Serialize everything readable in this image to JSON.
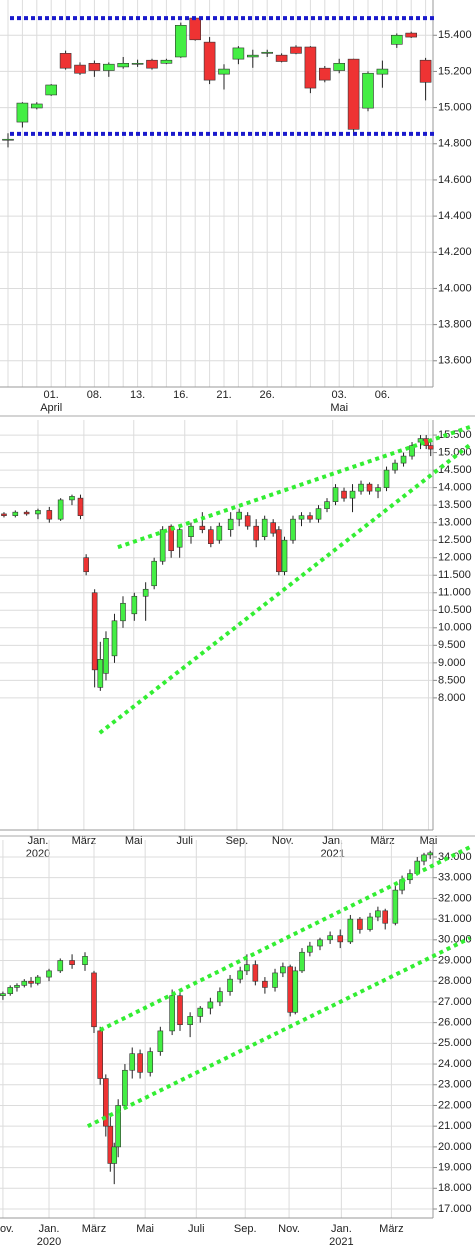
{
  "chart_data": [
    {
      "type": "candlestick",
      "up_color": "#44ee44",
      "down_color": "#ee3333",
      "grid": true,
      "categories": [
        null,
        null,
        null,
        "01.",
        null,
        null,
        "08.",
        null,
        null,
        "13.",
        null,
        null,
        "16.",
        null,
        null,
        "21.",
        null,
        null,
        "26.",
        null,
        null,
        null,
        null,
        "03.",
        null,
        null,
        "06.",
        null,
        null,
        null
      ],
      "month_labels": [
        null,
        null,
        null,
        "April",
        null,
        null,
        null,
        null,
        null,
        null,
        null,
        null,
        null,
        null,
        null,
        null,
        null,
        null,
        null,
        null,
        null,
        null,
        null,
        "Mai",
        null,
        null,
        null,
        null,
        null,
        null
      ],
      "open": [
        14820,
        14920,
        14998,
        15070,
        15300,
        15235,
        15245,
        15205,
        15225,
        15240,
        15262,
        15245,
        15280,
        15495,
        15362,
        15185,
        15268,
        15280,
        15300,
        15290,
        15335,
        15335,
        15218,
        15205,
        15268,
        14997,
        15185,
        15350,
        15412,
        15262
      ],
      "high": [
        14858,
        15030,
        15030,
        15130,
        15315,
        15250,
        15260,
        15250,
        15280,
        15265,
        15270,
        15270,
        15470,
        15500,
        15390,
        15240,
        15340,
        15320,
        15320,
        15300,
        15345,
        15340,
        15230,
        15270,
        15270,
        15200,
        15260,
        15410,
        15420,
        15275
      ],
      "low": [
        14780,
        14890,
        14990,
        15065,
        15210,
        15180,
        15170,
        15170,
        15215,
        15225,
        15210,
        15240,
        15275,
        15370,
        15130,
        15100,
        15240,
        15220,
        15280,
        15250,
        15295,
        15080,
        15140,
        15190,
        14850,
        14980,
        15110,
        15330,
        15385,
        15040
      ],
      "close": [
        14825,
        15025,
        15020,
        15125,
        15218,
        15190,
        15205,
        15240,
        15245,
        15245,
        15218,
        15262,
        15455,
        15375,
        15152,
        15213,
        15330,
        15290,
        15306,
        15255,
        15300,
        15108,
        15152,
        15245,
        14880,
        15190,
        15213,
        15400,
        15390,
        15140
      ],
      "ylim": [
        13455,
        15595
      ],
      "yticks": [
        {
          "value": 15400,
          "label": "15.400"
        },
        {
          "value": 15200,
          "label": "15.200"
        },
        {
          "value": 15000,
          "label": "15.000"
        },
        {
          "value": 14800,
          "label": "14.800"
        },
        {
          "value": 14600,
          "label": "14.600"
        },
        {
          "value": 14400,
          "label": "14.400"
        },
        {
          "value": 14200,
          "label": "14.200"
        },
        {
          "value": 14000,
          "label": "14.000"
        },
        {
          "value": 13800,
          "label": "13.800"
        },
        {
          "value": 13600,
          "label": "13.600"
        }
      ],
      "hlines": [
        15495,
        14855
      ],
      "hline_color": "#1a1acc"
    },
    {
      "type": "candlestick",
      "up_color": "#44ee44",
      "down_color": "#ee3333",
      "grid": true,
      "x": [
        -6,
        -4,
        -2,
        0,
        2,
        4,
        6,
        7.5,
        8.5,
        10,
        11,
        12,
        13.5,
        15,
        17,
        19,
        20.5,
        22,
        23.5,
        25,
        27,
        29,
        30.5,
        32,
        34,
        35.5,
        37,
        38.5,
        40,
        41.5,
        42.5,
        43.5,
        45,
        46.5,
        48,
        49.5,
        51,
        52.5,
        54,
        55.5,
        57,
        58.5,
        60,
        61.5,
        63,
        64.5,
        66,
        67.5,
        68.5,
        69.3
      ],
      "open": [
        13250,
        13200,
        13300,
        13250,
        13350,
        13100,
        13650,
        13700,
        12000,
        11000,
        8300,
        8700,
        9200,
        10200,
        10400,
        10900,
        11200,
        11900,
        12900,
        12300,
        12600,
        12900,
        12800,
        12500,
        12800,
        13100,
        13200,
        12900,
        12600,
        13000,
        12800,
        11600,
        12500,
        13100,
        13200,
        13100,
        13400,
        13600,
        13900,
        13700,
        13900,
        14100,
        13900,
        14000,
        14500,
        14700,
        14900,
        15300,
        15400,
        15200
      ],
      "high": [
        13300,
        13350,
        13350,
        13400,
        13450,
        13700,
        13800,
        13800,
        12100,
        11100,
        9600,
        9900,
        10400,
        10900,
        11000,
        11300,
        12000,
        12900,
        12950,
        12900,
        13000,
        13300,
        12900,
        13000,
        13300,
        13400,
        13300,
        13100,
        13200,
        13100,
        12900,
        12600,
        13200,
        13300,
        13300,
        13500,
        13700,
        14100,
        14000,
        14100,
        14200,
        14150,
        14100,
        14600,
        14800,
        15000,
        15300,
        15500,
        15500,
        15300
      ],
      "low": [
        13150,
        13150,
        13200,
        13100,
        13000,
        13050,
        13500,
        13100,
        11500,
        8300,
        8200,
        8500,
        9000,
        10000,
        10200,
        10200,
        11100,
        11800,
        12000,
        12000,
        12400,
        12700,
        12300,
        12400,
        12600,
        12900,
        12800,
        12300,
        12500,
        12600,
        11500,
        11500,
        12400,
        12900,
        13000,
        13000,
        13300,
        13500,
        13600,
        13300,
        13800,
        13800,
        13700,
        13900,
        14400,
        14600,
        14800,
        15100,
        15100,
        14900
      ],
      "close": [
        13200,
        13300,
        13250,
        13350,
        13100,
        13650,
        13750,
        13200,
        11600,
        8800,
        9100,
        9700,
        10200,
        10700,
        10900,
        11100,
        11900,
        12800,
        12200,
        12800,
        12900,
        12800,
        12400,
        12900,
        13100,
        13300,
        12900,
        12500,
        13100,
        12700,
        11600,
        12500,
        13100,
        13200,
        13100,
        13400,
        13600,
        14000,
        13700,
        13900,
        14100,
        13900,
        14000,
        14500,
        14700,
        14900,
        15200,
        15400,
        15200,
        15100
      ],
      "xlim": [
        -6.7,
        69.7
      ],
      "xticks": [
        {
          "value": 0,
          "label": "Jan."
        },
        {
          "value": 8.1,
          "label": "März"
        },
        {
          "value": 16.9,
          "label": "Mai"
        },
        {
          "value": 25.9,
          "label": "Juli"
        },
        {
          "value": 35.1,
          "label": "Sep."
        },
        {
          "value": 43.2,
          "label": "Nov."
        },
        {
          "value": 52,
          "label": "Jan."
        },
        {
          "value": 60.8,
          "label": "März"
        },
        {
          "value": 68.9,
          "label": "Mai"
        }
      ],
      "year_labels": [
        {
          "value": 0,
          "label": "2020"
        },
        {
          "value": 52,
          "label": "2021"
        }
      ],
      "ylim": [
        4230,
        15930
      ],
      "yticks": [
        {
          "value": 15500,
          "label": "15.500"
        },
        {
          "value": 15000,
          "label": "15.000"
        },
        {
          "value": 14500,
          "label": "14.500"
        },
        {
          "value": 14000,
          "label": "14.000"
        },
        {
          "value": 13500,
          "label": "13.500"
        },
        {
          "value": 13000,
          "label": "13.000"
        },
        {
          "value": 12500,
          "label": "12.500"
        },
        {
          "value": 12000,
          "label": "12.000"
        },
        {
          "value": 11500,
          "label": "11.500"
        },
        {
          "value": 11000,
          "label": "11.000"
        },
        {
          "value": 10500,
          "label": "10.500"
        },
        {
          "value": 10000,
          "label": "10.000"
        },
        {
          "value": 9500,
          "label": "9.500"
        },
        {
          "value": 9000,
          "label": "9.000"
        },
        {
          "value": 8500,
          "label": "8.500"
        },
        {
          "value": 8000,
          "label": "8.000"
        }
      ],
      "trendlines": [
        {
          "x": [
            14.1,
            76.2
          ],
          "y": [
            12300,
            15730
          ]
        },
        {
          "x": [
            10.9,
            76.2
          ],
          "y": [
            7000,
            15220
          ]
        }
      ],
      "trendline_color": "#33ee33"
    },
    {
      "type": "candlestick",
      "up_color": "#44ee44",
      "down_color": "#ee3333",
      "grid": true,
      "x": [
        -8.2,
        -6.9,
        -5.7,
        -4.4,
        -3.2,
        -2,
        0,
        2,
        4.1,
        6.4,
        8,
        9.1,
        10.1,
        10.9,
        11.6,
        12.3,
        13.5,
        14.8,
        16.2,
        18,
        19.8,
        21.9,
        23.3,
        25.1,
        26.9,
        28.7,
        30.4,
        32.2,
        34,
        35.2,
        36.7,
        38.4,
        40.2,
        41.6,
        42.9,
        43.8,
        45,
        46.4,
        48.2,
        50,
        51.8,
        53.6,
        55.3,
        57.1,
        58.5,
        59.8,
        61.6,
        62.8,
        64.2,
        65.5,
        66.7,
        67.8
      ],
      "open": [
        27300,
        27400,
        27700,
        27800,
        28000,
        27900,
        28200,
        28500,
        29000,
        28800,
        28400,
        25600,
        23300,
        21000,
        19200,
        20000,
        22000,
        23700,
        24500,
        23600,
        24600,
        25600,
        27300,
        25900,
        26300,
        26700,
        27000,
        27500,
        28100,
        28500,
        28800,
        28000,
        27700,
        28400,
        28700,
        26500,
        28500,
        29400,
        29700,
        30000,
        30200,
        29900,
        31000,
        30500,
        31100,
        31400,
        30800,
        32400,
        32900,
        33200,
        33800,
        34100
      ],
      "high": [
        27500,
        27800,
        27900,
        28100,
        28200,
        28300,
        28600,
        29100,
        29300,
        29400,
        28500,
        25800,
        23500,
        21500,
        20200,
        22300,
        24000,
        24800,
        24700,
        24800,
        25800,
        27600,
        27500,
        26500,
        26800,
        27200,
        27700,
        28300,
        28700,
        29300,
        29000,
        28200,
        28600,
        28900,
        28800,
        28700,
        29600,
        29900,
        30100,
        30400,
        30500,
        31200,
        31100,
        31300,
        31600,
        31500,
        32600,
        33100,
        33400,
        34000,
        34200,
        34300
      ],
      "low": [
        27100,
        27300,
        27500,
        27700,
        27700,
        27800,
        28000,
        28400,
        28600,
        28500,
        25500,
        23000,
        20500,
        18800,
        18200,
        19500,
        21800,
        23300,
        23300,
        23400,
        24400,
        25400,
        25600,
        25300,
        26000,
        26400,
        26800,
        27300,
        27900,
        28300,
        27800,
        27400,
        27500,
        28200,
        26300,
        26400,
        28400,
        29200,
        29500,
        29800,
        29600,
        29800,
        30300,
        30400,
        30900,
        30500,
        30700,
        32200,
        32700,
        33100,
        33600,
        33900
      ],
      "close": [
        27400,
        27700,
        27800,
        28000,
        27900,
        28200,
        28500,
        29000,
        28800,
        29200,
        25800,
        23300,
        21000,
        19200,
        20000,
        22000,
        23700,
        24500,
        23600,
        24600,
        25600,
        27300,
        25900,
        26300,
        26700,
        27000,
        27500,
        28100,
        28500,
        28800,
        28000,
        27700,
        28400,
        28700,
        26500,
        28500,
        29400,
        29700,
        30000,
        30200,
        29900,
        31000,
        30500,
        31100,
        31400,
        30800,
        32400,
        32900,
        33200,
        33800,
        34100,
        34200
      ],
      "xlim": [
        -8.72,
        68.3
      ],
      "xticks": [
        {
          "value": -8.2,
          "label": "ov."
        },
        {
          "value": 0,
          "label": "Jan."
        },
        {
          "value": 8,
          "label": "März"
        },
        {
          "value": 17.1,
          "label": "Mai"
        },
        {
          "value": 26.2,
          "label": "Juli"
        },
        {
          "value": 34.9,
          "label": "Sep."
        },
        {
          "value": 42.7,
          "label": "Nov."
        },
        {
          "value": 52,
          "label": "Jan."
        },
        {
          "value": 60.9,
          "label": "März"
        }
      ],
      "year_labels": [
        {
          "value": 0,
          "label": "2020"
        },
        {
          "value": 52,
          "label": "2021"
        }
      ],
      "ylim": [
        16565,
        34820
      ],
      "yticks": [
        {
          "value": 34000,
          "label": "34.000"
        },
        {
          "value": 33000,
          "label": "33.000"
        },
        {
          "value": 32000,
          "label": "32.000"
        },
        {
          "value": 31000,
          "label": "31.000"
        },
        {
          "value": 30000,
          "label": "30.000"
        },
        {
          "value": 29000,
          "label": "29.000"
        },
        {
          "value": 28000,
          "label": "28.000"
        },
        {
          "value": 27000,
          "label": "27.000"
        },
        {
          "value": 26000,
          "label": "26.000"
        },
        {
          "value": 25000,
          "label": "25.000"
        },
        {
          "value": 24000,
          "label": "24.000"
        },
        {
          "value": 23000,
          "label": "23.000"
        },
        {
          "value": 22000,
          "label": "22.000"
        },
        {
          "value": 21000,
          "label": "21.000"
        },
        {
          "value": 20000,
          "label": "20.000"
        },
        {
          "value": 19000,
          "label": "19.000"
        },
        {
          "value": 18000,
          "label": "18.000"
        },
        {
          "value": 17000,
          "label": "17.000"
        }
      ],
      "trendlines": [
        {
          "x": [
            9.1,
            74.9
          ],
          "y": [
            25640,
            34480
          ]
        },
        {
          "x": [
            6.9,
            74.9
          ],
          "y": [
            21000,
            30090
          ]
        }
      ],
      "trendline_color": "#33ee33"
    }
  ]
}
